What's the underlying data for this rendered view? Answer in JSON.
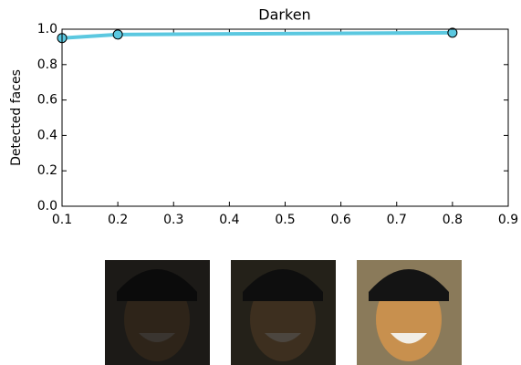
{
  "chart_data": {
    "type": "line",
    "title": "Darken",
    "y_label": "Detected faces",
    "x": [
      0.1,
      0.2,
      0.8
    ],
    "values": [
      0.95,
      0.97,
      0.98
    ],
    "color": "#5bc8e0",
    "xlim": [
      0.1,
      0.9
    ],
    "xticks": [
      0.1,
      0.2,
      0.3,
      0.4,
      0.5,
      0.6,
      0.7,
      0.8,
      0.9
    ],
    "ylim": [
      0,
      1
    ],
    "yticks": [
      {
        "value": 0,
        "label": "0.0"
      },
      0.2,
      0.4,
      0.6,
      0.8,
      {
        "value": 1,
        "label": "1.0"
      }
    ]
  }
}
